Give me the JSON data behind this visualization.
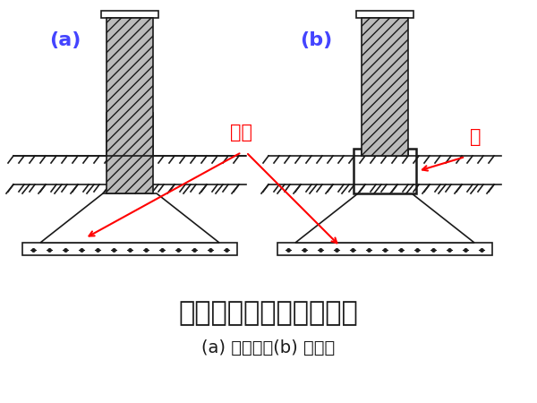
{
  "title": "墙下钢筋混凝土条形基础",
  "subtitle": "(a) 无肋的；(b) 有肋的",
  "label_a": "(a)",
  "label_b": "(b)",
  "label_dibanb": "底板",
  "label_rib": "肋",
  "bg_color": "#ffffff",
  "line_color": "#1a1a1a",
  "hatch_color": "#555555",
  "red_color": "#ff0000",
  "blue_color": "#0000ff",
  "title_fontsize": 22,
  "subtitle_fontsize": 14,
  "label_fontsize": 16
}
